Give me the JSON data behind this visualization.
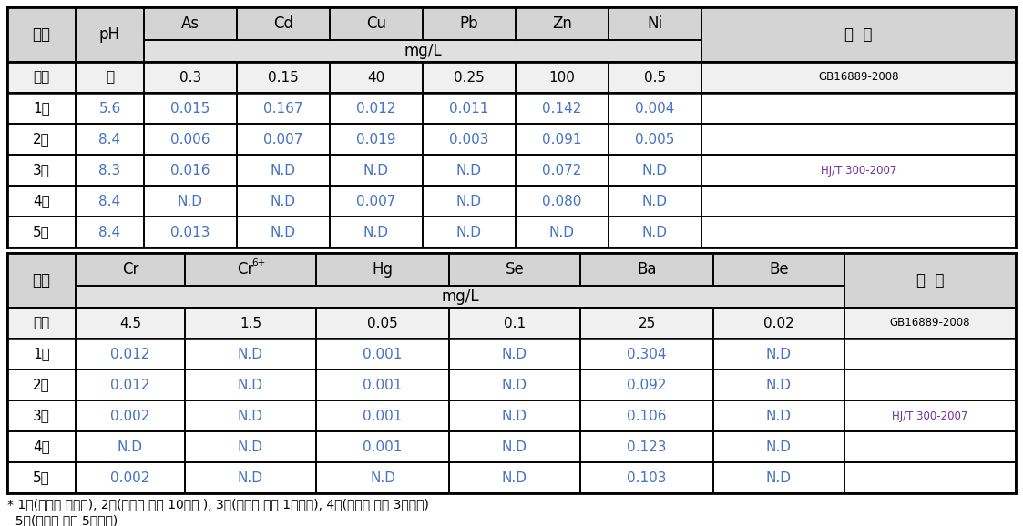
{
  "top_table": {
    "header_row1": [
      "구분",
      "pH",
      "As",
      "Cd",
      "Cu",
      "Pb",
      "Zn",
      "Ni",
      "비  고"
    ],
    "rows": [
      [
        "기준",
        "－",
        "0.3",
        "0.15",
        "40",
        "0.25",
        "100",
        "0.5",
        "GB16889-2008"
      ],
      [
        "1회",
        "5.6",
        "0.015",
        "0.167",
        "0.012",
        "0.011",
        "0.142",
        "0.004",
        ""
      ],
      [
        "2회",
        "8.4",
        "0.006",
        "0.007",
        "0.019",
        "0.003",
        "0.091",
        "0.005",
        ""
      ],
      [
        "3회",
        "8.3",
        "0.016",
        "N.D",
        "N.D",
        "N.D",
        "0.072",
        "N.D",
        "HJ/T 300-2007"
      ],
      [
        "4회",
        "8.4",
        "N.D",
        "N.D",
        "0.007",
        "N.D",
        "0.080",
        "N.D",
        ""
      ],
      [
        "5회",
        "8.4",
        "0.013",
        "N.D",
        "N.D",
        "N.D",
        "N.D",
        "N.D",
        ""
      ]
    ]
  },
  "bottom_table": {
    "header_row1": [
      "구분",
      "Cr",
      "Cr6+",
      "Hg",
      "Se",
      "Ba",
      "Be",
      "비  고"
    ],
    "rows": [
      [
        "기준",
        "4.5",
        "1.5",
        "0.05",
        "0.1",
        "25",
        "0.02",
        "GB16889-2008"
      ],
      [
        "1회",
        "0.012",
        "N.D",
        "0.001",
        "N.D",
        "0.304",
        "N.D",
        ""
      ],
      [
        "2회",
        "0.012",
        "N.D",
        "0.001",
        "N.D",
        "0.092",
        "N.D",
        ""
      ],
      [
        "3회",
        "0.002",
        "N.D",
        "0.001",
        "N.D",
        "0.106",
        "N.D",
        "HJ/T 300-2007"
      ],
      [
        "4회",
        "N.D",
        "N.D",
        "0.001",
        "N.D",
        "0.123",
        "N.D",
        ""
      ],
      [
        "5회",
        "0.002",
        "N.D",
        "N.D",
        "N.D",
        "0.103",
        "N.D",
        ""
      ]
    ]
  },
  "footnote_line1": "* 1회(안정화 처리전), 2회(안정화 처리 10일후 ), 3회(안정화 처리 1개월후), 4회(안정화 처리 3개월후)",
  "footnote_line2": "  5회(안정화 처리 5개월후)",
  "header_bg": "#d4d4d4",
  "mgL_bg": "#e0e0e0",
  "kijun_bg": "#f0f0f0",
  "data_bg": "#ffffff",
  "nd_color": "#4472c4",
  "value_color": "#4472c4",
  "border_color": "#000000",
  "header_text_color": "#000000",
  "korean_text_color": "#000000",
  "note_text_color": "#7030a0",
  "font_size": 11,
  "header_font_size": 12,
  "small_font_size": 8.5,
  "footnote_font_size": 10
}
